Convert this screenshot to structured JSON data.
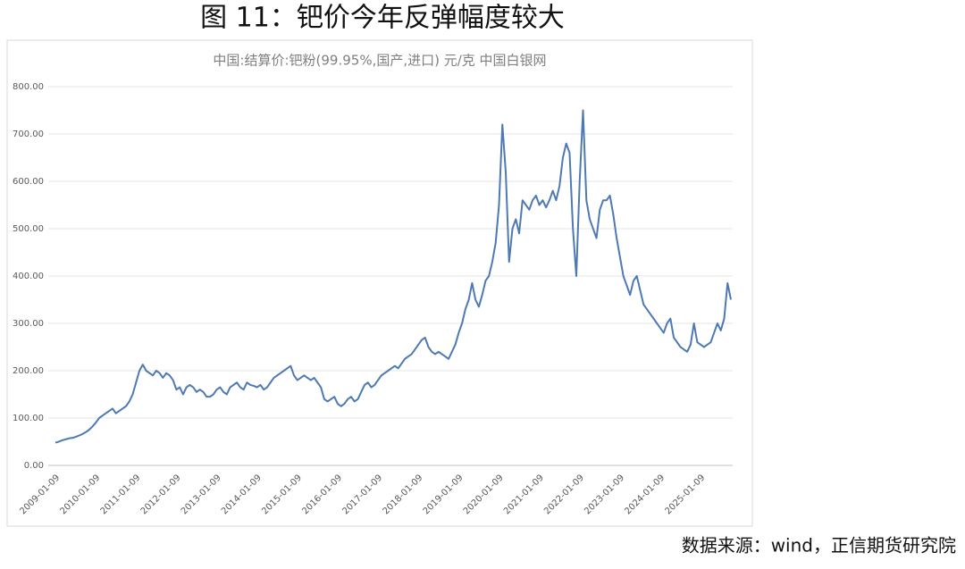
{
  "header": {
    "title": "图 11：钯价今年反弹幅度较大"
  },
  "chart_data": {
    "type": "line",
    "title": "中国:结算价:钯粉(99.95%,国产,进口) 元/克 中国白银网",
    "categories": [
      "2009-01-09",
      null,
      null,
      null,
      null,
      null,
      null,
      null,
      null,
      null,
      null,
      null,
      "2010-01-09",
      null,
      null,
      null,
      null,
      null,
      null,
      null,
      null,
      null,
      null,
      null,
      "2011-01-09",
      null,
      null,
      null,
      null,
      null,
      null,
      null,
      null,
      null,
      null,
      null,
      "2012-01-09",
      null,
      null,
      null,
      null,
      null,
      null,
      null,
      null,
      null,
      null,
      null,
      "2013-01-09",
      null,
      null,
      null,
      null,
      null,
      null,
      null,
      null,
      null,
      null,
      null,
      "2014-01-09",
      null,
      null,
      null,
      null,
      null,
      null,
      null,
      null,
      null,
      null,
      null,
      "2015-01-09",
      null,
      null,
      null,
      null,
      null,
      null,
      null,
      null,
      null,
      null,
      null,
      "2016-01-09",
      null,
      null,
      null,
      null,
      null,
      null,
      null,
      null,
      null,
      null,
      null,
      "2017-01-09",
      null,
      null,
      null,
      null,
      null,
      null,
      null,
      null,
      null,
      null,
      null,
      "2018-01-09",
      null,
      null,
      null,
      null,
      null,
      null,
      null,
      null,
      null,
      null,
      null,
      "2019-01-09",
      null,
      null,
      null,
      null,
      null,
      null,
      null,
      null,
      null,
      null,
      null,
      "2020-01-09",
      null,
      null,
      null,
      null,
      null,
      null,
      null,
      null,
      null,
      null,
      null,
      "2021-01-09",
      null,
      null,
      null,
      null,
      null,
      null,
      null,
      null,
      null,
      null,
      null,
      "2022-01-09",
      null,
      null,
      null,
      null,
      null,
      null,
      null,
      null,
      null,
      null,
      null,
      "2023-01-09",
      null,
      null,
      null,
      null,
      null,
      null,
      null,
      null,
      null,
      null,
      null,
      "2024-01-09",
      null,
      null,
      null,
      null,
      null,
      null,
      null,
      null,
      null,
      null,
      null,
      "2025-01-09",
      null,
      null,
      null,
      null,
      null,
      null,
      null,
      null,
      null
    ],
    "series": [
      {
        "color": "#4e79b4",
        "values": [
          48,
          50,
          53,
          55,
          57,
          58,
          60,
          63,
          66,
          70,
          75,
          82,
          90,
          100,
          105,
          110,
          115,
          120,
          110,
          115,
          120,
          125,
          135,
          150,
          175,
          200,
          213,
          200,
          195,
          190,
          200,
          195,
          185,
          195,
          190,
          180,
          160,
          165,
          150,
          165,
          170,
          165,
          155,
          160,
          155,
          145,
          145,
          150,
          160,
          165,
          155,
          150,
          165,
          170,
          175,
          165,
          160,
          175,
          170,
          168,
          165,
          170,
          160,
          165,
          175,
          185,
          190,
          195,
          200,
          205,
          210,
          190,
          180,
          185,
          190,
          185,
          180,
          185,
          175,
          165,
          140,
          135,
          140,
          145,
          130,
          125,
          130,
          140,
          145,
          135,
          140,
          155,
          170,
          175,
          165,
          170,
          180,
          190,
          195,
          200,
          205,
          210,
          205,
          215,
          225,
          230,
          235,
          245,
          255,
          265,
          270,
          250,
          240,
          235,
          240,
          235,
          230,
          225,
          240,
          255,
          280,
          300,
          330,
          350,
          385,
          350,
          335,
          360,
          390,
          400,
          430,
          470,
          550,
          720,
          620,
          430,
          500,
          520,
          490,
          560,
          550,
          540,
          560,
          570,
          550,
          560,
          545,
          560,
          580,
          560,
          590,
          650,
          680,
          660,
          500,
          400,
          600,
          750,
          560,
          520,
          500,
          480,
          540,
          560,
          560,
          570,
          530,
          480,
          440,
          400,
          380,
          360,
          390,
          400,
          370,
          340,
          330,
          320,
          310,
          300,
          290,
          280,
          300,
          310,
          270,
          260,
          250,
          245,
          240,
          255,
          300,
          260,
          255,
          250,
          255,
          260,
          280,
          300,
          285,
          310,
          385,
          350
        ]
      }
    ],
    "ylim": [
      0,
      800
    ],
    "yticks": [
      {
        "value": 0,
        "label": "0.00"
      },
      {
        "value": 100,
        "label": "100.00"
      },
      {
        "value": 200,
        "label": "200.00"
      },
      {
        "value": 300,
        "label": "300.00"
      },
      {
        "value": 400,
        "label": "400.00"
      },
      {
        "value": 500,
        "label": "500.00"
      },
      {
        "value": 600,
        "label": "600.00"
      },
      {
        "value": 700,
        "label": "700.00"
      },
      {
        "value": 800,
        "label": "800.00"
      }
    ],
    "grid": true
  },
  "footer": {
    "source": "数据来源：wind，正信期货研究院"
  }
}
